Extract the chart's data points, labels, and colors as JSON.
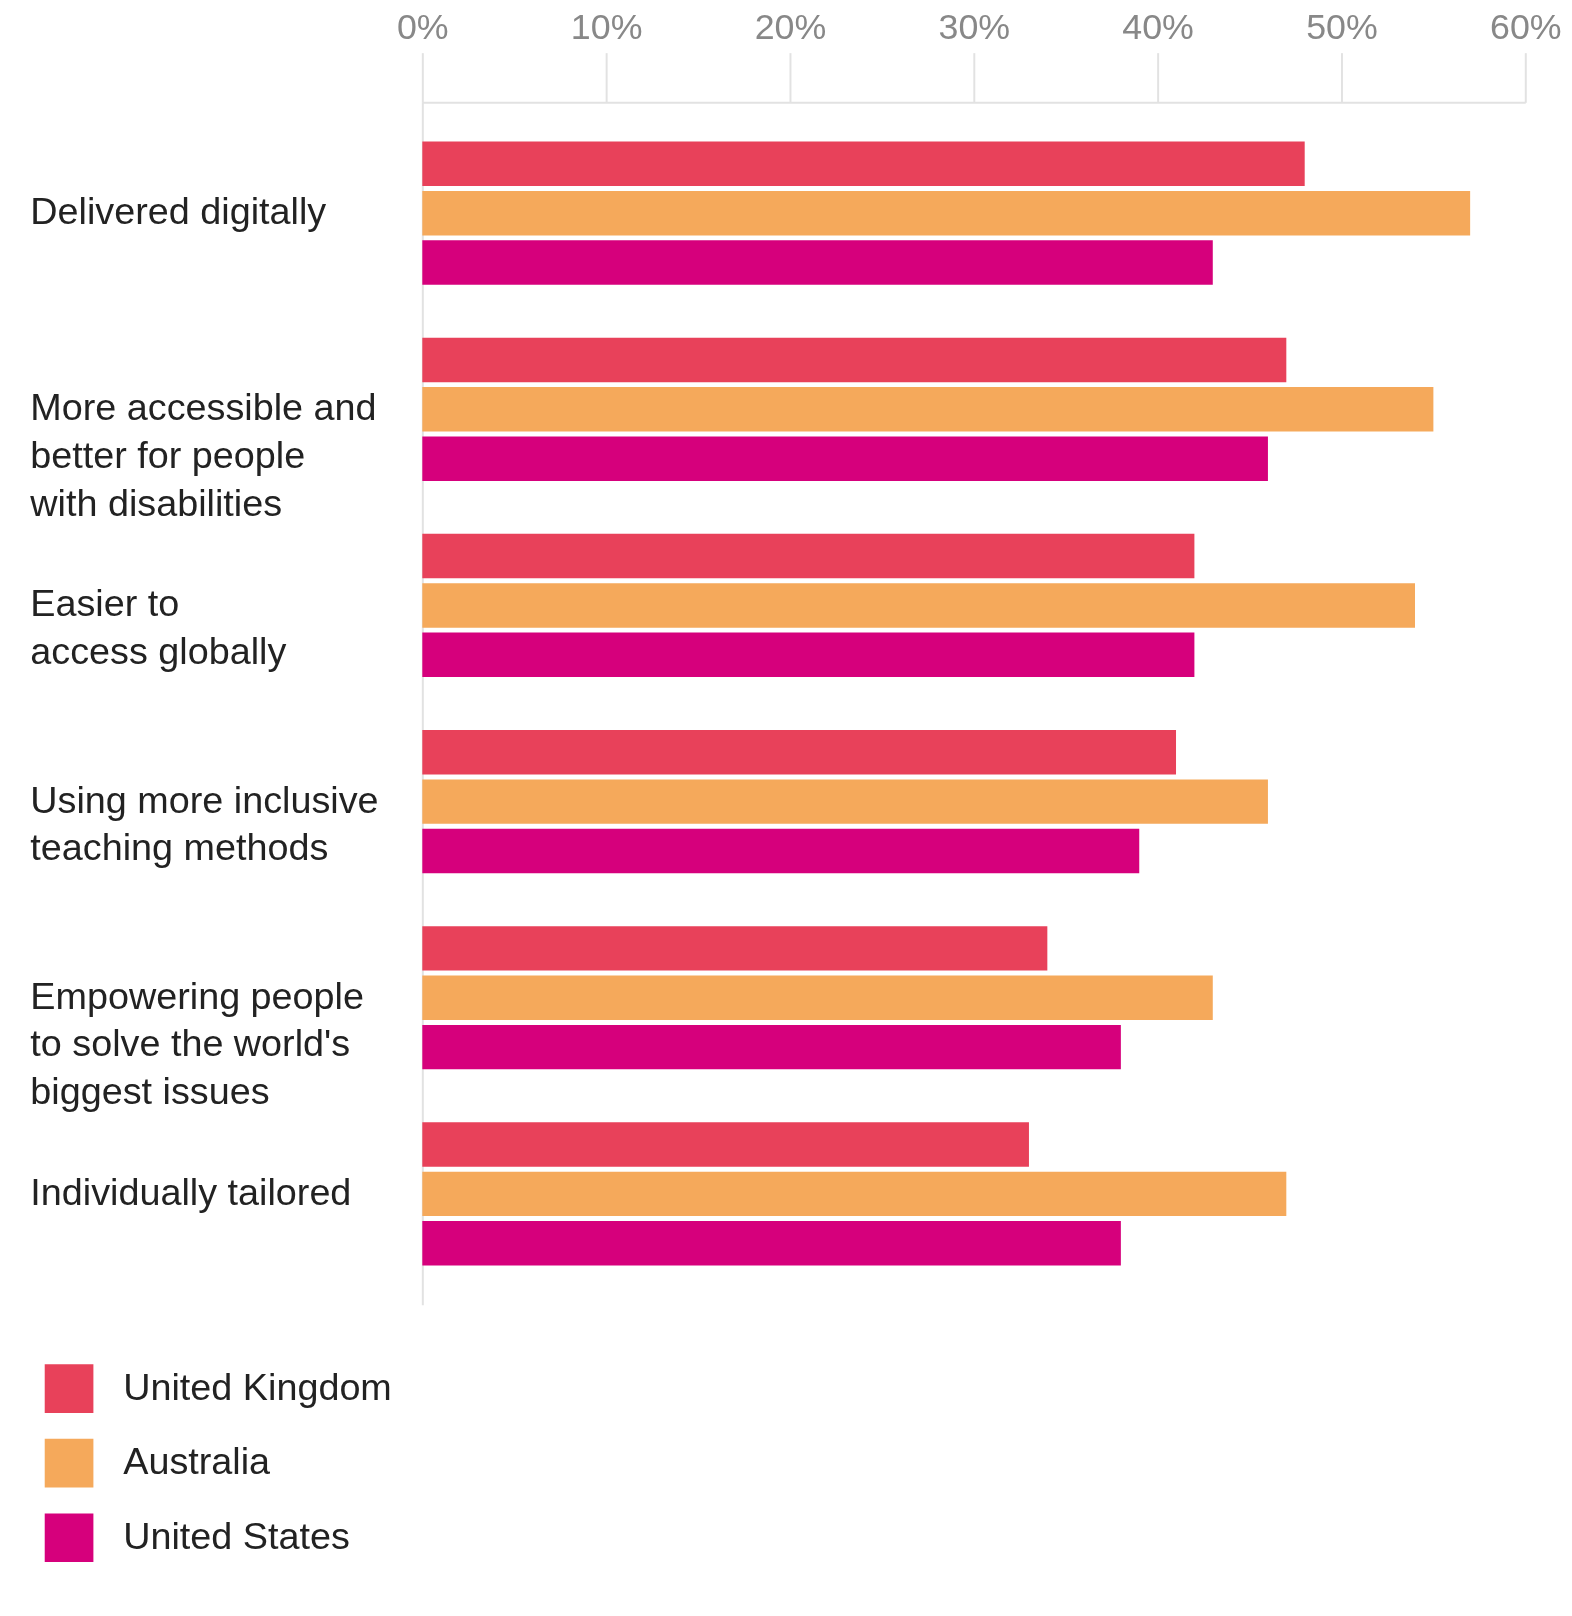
{
  "chart_data": {
    "type": "bar",
    "orientation": "horizontal",
    "categories": [
      "Delivered digitally",
      "More accessible and\nbetter for people\nwith disabilities",
      "Easier to\naccess globally",
      "Using more inclusive\nteaching methods",
      "Empowering people\nto solve the world's\nbiggest issues",
      "Individually tailored"
    ],
    "series": [
      {
        "name": "United Kingdom",
        "color": "#e8415a",
        "values": [
          48,
          47,
          42,
          41,
          34,
          33
        ]
      },
      {
        "name": "Australia",
        "color": "#f5a95b",
        "values": [
          57,
          55,
          54,
          46,
          43,
          47
        ]
      },
      {
        "name": "United States",
        "color": "#d6007c",
        "values": [
          43,
          46,
          42,
          39,
          38,
          38
        ]
      }
    ],
    "xlim": [
      0,
      60
    ],
    "xticks": [
      {
        "value": 0,
        "label": "0%"
      },
      {
        "value": 10,
        "label": "10%"
      },
      {
        "value": 20,
        "label": "20%"
      },
      {
        "value": 30,
        "label": "30%"
      },
      {
        "value": 40,
        "label": "40%"
      },
      {
        "value": 50,
        "label": "50%"
      },
      {
        "value": 60,
        "label": "60%"
      }
    ],
    "grid": false,
    "legend": "bottom left"
  }
}
